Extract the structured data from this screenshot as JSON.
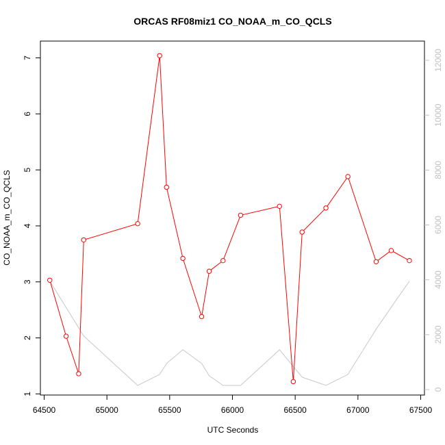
{
  "chart_data": {
    "type": "line",
    "title": "ORCAS RF08miz1 CO_NOAA_m_CO_QCLS",
    "xlabel": "UTC Seconds",
    "ylabel": "CO_NOAA_m_CO_QCLS",
    "xlim": [
      64470,
      67530
    ],
    "ylim": [
      0.98,
      7.3
    ],
    "y2lim": [
      -200,
      12700
    ],
    "x_ticks": [
      "64500",
      "65000",
      "65500",
      "66000",
      "66500",
      "67000",
      "67500"
    ],
    "y_ticks": [
      "1",
      "2",
      "3",
      "4",
      "5",
      "6",
      "7"
    ],
    "y2_ticks": [
      "0",
      "2000",
      "4000",
      "6000",
      "8000",
      "10000",
      "12000"
    ],
    "series": [
      {
        "axis": "left",
        "color": "#ff0000",
        "markers": "open-circle",
        "x": [
          64545,
          64675,
          64775,
          64815,
          65245,
          65420,
          65475,
          65605,
          65755,
          65815,
          65925,
          66065,
          66375,
          66485,
          66555,
          66745,
          66920,
          67145,
          67265,
          67410
        ],
        "y": [
          3.03,
          2.03,
          1.36,
          3.75,
          4.04,
          7.04,
          4.69,
          3.42,
          2.38,
          3.19,
          3.38,
          4.19,
          4.35,
          1.22,
          3.89,
          4.32,
          4.88,
          3.36,
          3.56,
          3.38
        ]
      },
      {
        "axis": "right",
        "color": "#c8c8c8",
        "markers": "none",
        "x": [
          64545,
          64815,
          65245,
          65420,
          65475,
          65605,
          65755,
          65815,
          65925,
          66065,
          66375,
          66555,
          66745,
          66920,
          67145,
          67265,
          67410
        ],
        "y": [
          3950,
          1950,
          150,
          550,
          950,
          1450,
          950,
          500,
          150,
          150,
          1450,
          450,
          150,
          550,
          2200,
          3000,
          3950
        ]
      }
    ]
  }
}
